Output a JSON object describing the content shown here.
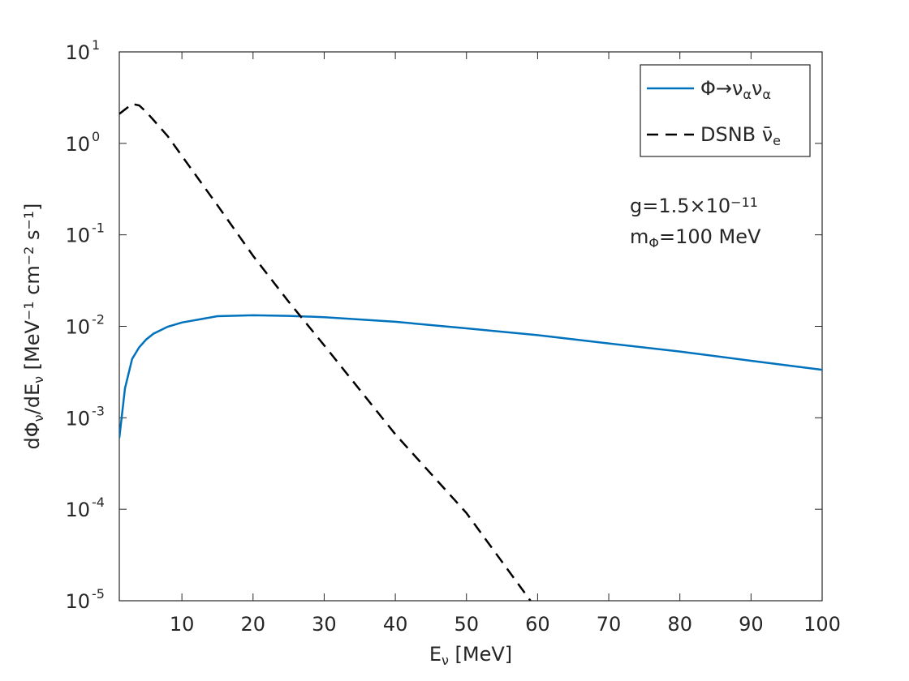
{
  "chart_data": {
    "type": "line",
    "xlabel": [
      {
        "text": "E"
      },
      {
        "text": "ν",
        "shift": "sub"
      },
      {
        "text": " [MeV]"
      }
    ],
    "ylabel": [
      {
        "text": "dΦ"
      },
      {
        "text": "ν",
        "shift": "sub"
      },
      {
        "text": "/dE"
      },
      {
        "text": "ν",
        "shift": "sub"
      },
      {
        "text": " [MeV"
      },
      {
        "text": "−1",
        "shift": "sup"
      },
      {
        "text": " cm"
      },
      {
        "text": "−2",
        "shift": "sup"
      },
      {
        "text": " s"
      },
      {
        "text": "−1",
        "shift": "sup"
      },
      {
        "text": "]"
      }
    ],
    "xlim": [
      1.2,
      100
    ],
    "ylim": [
      1e-05,
      10
    ],
    "yscale": "log",
    "xticks": [
      10,
      20,
      30,
      40,
      50,
      60,
      70,
      80,
      90,
      100
    ],
    "yticks": [
      {
        "value": 10,
        "label": "10",
        "exponent": "1"
      },
      {
        "value": 1,
        "label": "10",
        "exponent": "0"
      },
      {
        "value": 0.1,
        "label": "10",
        "exponent": "-1"
      },
      {
        "value": 0.01,
        "label": "10",
        "exponent": "-2"
      },
      {
        "value": 0.001,
        "label": "10",
        "exponent": "-3"
      },
      {
        "value": 0.0001,
        "label": "10",
        "exponent": "-4"
      },
      {
        "value": 1e-05,
        "label": "10",
        "exponent": "-5"
      }
    ],
    "legend": "upper right",
    "series": [
      {
        "name": [
          {
            "text": "Φ→ν"
          },
          {
            "text": "α",
            "shift": "sub"
          },
          {
            "text": "ν"
          },
          {
            "text": "α",
            "shift": "sub"
          }
        ],
        "color": "#0072bd",
        "dash": "solid",
        "x": [
          1.2,
          2,
          3,
          4,
          5,
          6,
          8,
          10,
          15,
          20,
          25,
          30,
          40,
          50,
          60,
          70,
          80,
          90,
          100
        ],
        "values": [
          0.0006,
          0.0021,
          0.0044,
          0.0059,
          0.0072,
          0.0083,
          0.0099,
          0.011,
          0.0129,
          0.0132,
          0.013,
          0.0126,
          0.0112,
          0.0095,
          0.008,
          0.0065,
          0.0053,
          0.0042,
          0.00335
        ]
      },
      {
        "name": [
          {
            "text": "DSNB "
          },
          {
            "text": "ν̄"
          },
          {
            "text": "e",
            "shift": "sub"
          }
        ],
        "color": "#000000",
        "dash": "dashed",
        "x": [
          1.2,
          3,
          4,
          5,
          6,
          8,
          10,
          15,
          20,
          25,
          30,
          40,
          50,
          59
        ],
        "values": [
          2.1,
          2.7,
          2.6,
          2.2,
          1.8,
          1.2,
          0.73,
          0.21,
          0.059,
          0.0186,
          0.0062,
          0.00066,
          9.1e-05,
          1e-05
        ]
      }
    ],
    "annotations": [
      [
        {
          "text": "g=1.5×10"
        },
        {
          "text": "−11",
          "shift": "sup"
        }
      ],
      [
        {
          "text": "m"
        },
        {
          "text": "Φ",
          "shift": "sub"
        },
        {
          "text": "=100 MeV"
        }
      ]
    ]
  }
}
